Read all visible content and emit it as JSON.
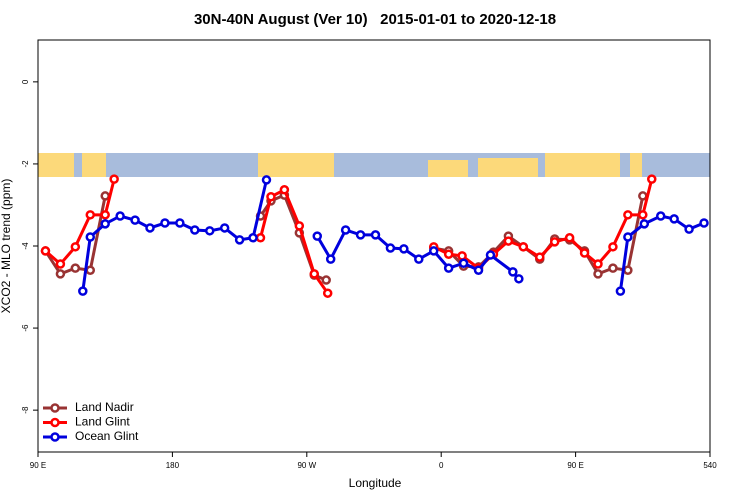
{
  "chart_data": {
    "type": "line",
    "title": "30N-40N August (Ver 10)   2015-01-01 to 2020-12-18",
    "x_label": "Longitude",
    "y_label": "XCO2 - MLO trend (ppm)",
    "xlim": [
      90,
      540
    ],
    "ylim": [
      -9.02,
      1.02
    ],
    "xticks": [
      {
        "value": 90,
        "label": "90 E"
      },
      180,
      {
        "value": 270,
        "label": "90 W"
      },
      {
        "value": 360,
        "label": "0"
      },
      {
        "value": 450,
        "label": "90 E"
      },
      540
    ],
    "yticks": [
      0,
      -2,
      -4,
      -6,
      -8
    ],
    "legend": "bottom-left",
    "series": [
      {
        "name": "Land Nadir",
        "color": "#993333",
        "x": [
          95,
          105,
          115,
          125,
          135,
          null,
          239,
          246,
          255,
          265,
          275,
          283,
          null,
          355,
          365,
          375,
          385,
          395,
          405,
          415,
          426,
          436,
          446,
          456,
          465,
          475,
          485,
          495
        ],
        "values": [
          -4.12,
          -4.68,
          -4.54,
          -4.59,
          -2.78,
          null,
          -3.27,
          -2.9,
          -2.76,
          -3.68,
          -4.71,
          -4.83,
          null,
          -4.05,
          -4.12,
          -4.49,
          -4.51,
          -4.15,
          -3.76,
          -4.02,
          -4.32,
          -3.83,
          -3.85,
          -4.12,
          -4.68,
          -4.54,
          -4.59,
          -2.78
        ]
      },
      {
        "name": "Land Glint",
        "color": "#ff0000",
        "x": [
          95,
          105,
          115,
          125,
          135,
          141,
          null,
          239,
          246,
          255,
          265,
          275,
          284,
          null,
          355,
          365,
          374,
          385,
          395,
          405,
          415,
          426,
          436,
          446,
          456,
          465,
          475,
          485,
          495,
          501
        ],
        "values": [
          -4.12,
          -4.44,
          -4.02,
          -3.24,
          -3.24,
          -2.37,
          null,
          -3.8,
          -2.8,
          -2.63,
          -3.51,
          -4.68,
          -5.15,
          null,
          -4.02,
          -4.2,
          -4.24,
          -4.54,
          -4.2,
          -3.88,
          -4.02,
          -4.27,
          -3.9,
          -3.8,
          -4.17,
          -4.44,
          -4.02,
          -3.24,
          -3.24,
          -2.37
        ]
      },
      {
        "name": "Ocean Glint",
        "color": "#0000dd",
        "x": [
          120,
          125,
          135,
          145,
          155,
          165,
          175,
          185,
          195,
          205,
          215,
          225,
          234,
          243,
          null,
          277,
          286,
          296,
          306,
          316,
          326,
          335,
          345,
          355,
          365,
          375,
          385,
          393,
          408,
          412,
          null,
          480,
          485,
          496,
          507,
          516,
          526,
          536
        ],
        "values": [
          -5.1,
          -3.78,
          -3.46,
          -3.27,
          -3.37,
          -3.56,
          -3.44,
          -3.44,
          -3.61,
          -3.63,
          -3.56,
          -3.85,
          -3.8,
          -2.39,
          null,
          -3.76,
          -4.32,
          -3.61,
          -3.73,
          -3.73,
          -4.05,
          -4.07,
          -4.32,
          -4.12,
          -4.54,
          -4.42,
          -4.59,
          -4.22,
          -4.63,
          -4.8,
          null,
          -5.1,
          -3.78,
          -3.46,
          -3.27,
          -3.34,
          -3.59,
          -3.44
        ]
      }
    ]
  }
}
